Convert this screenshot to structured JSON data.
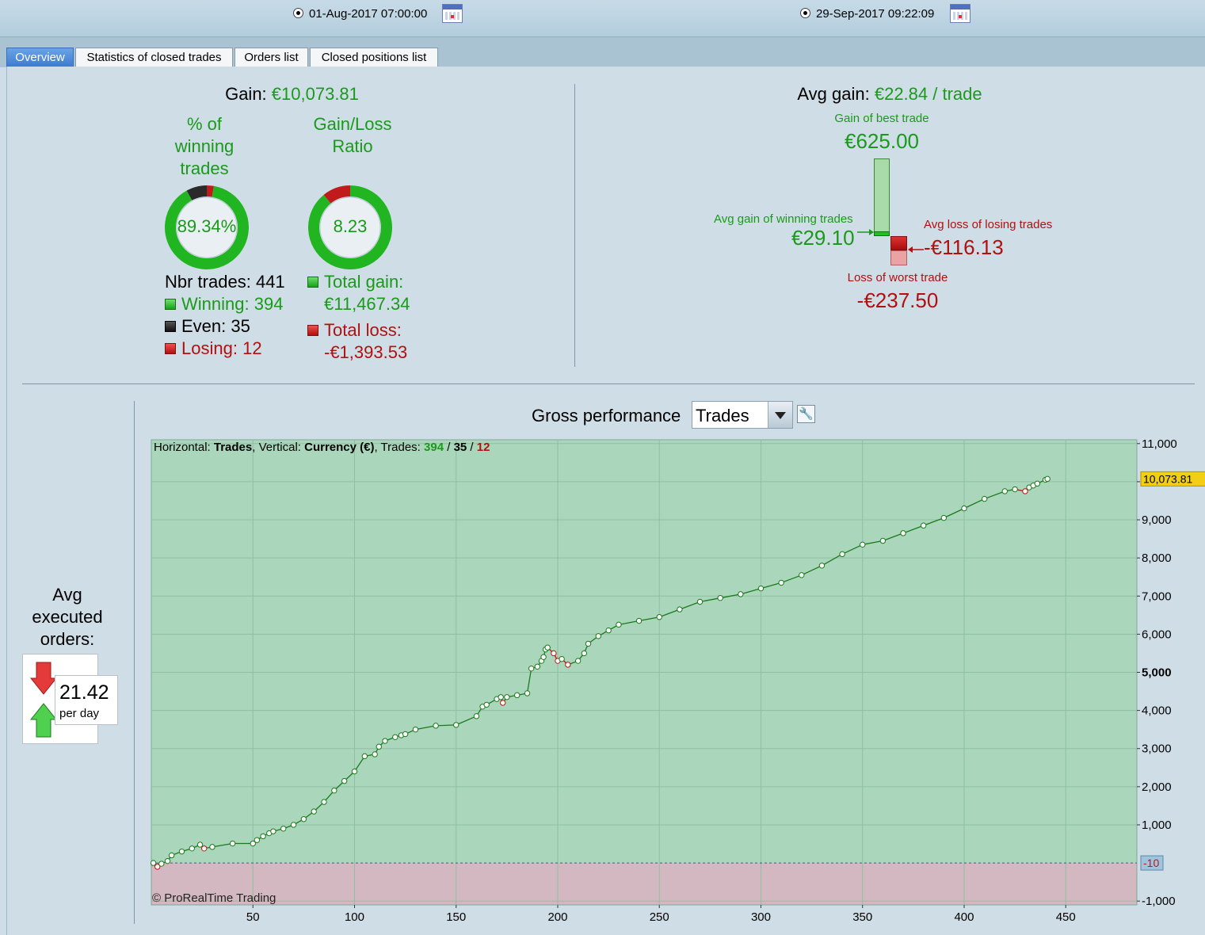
{
  "header": {
    "start_date": "01-Aug-2017 07:00:00",
    "end_date": "29-Sep-2017 09:22:09",
    "calendar_icon": "calendar-icon"
  },
  "tabs": [
    {
      "label": "Overview",
      "active": true
    },
    {
      "label": "Statistics of closed trades",
      "active": false
    },
    {
      "label": "Orders list",
      "active": false
    },
    {
      "label": "Closed positions list",
      "active": false
    }
  ],
  "overview": {
    "gain_label": "Gain:",
    "gain_value": "€10,073.81",
    "pct_winning_title": [
      "% of",
      "winning",
      "trades"
    ],
    "pct_winning_value": "89.34%",
    "pct_winning_fraction": 0.8934,
    "pct_even_fraction": 0.0794,
    "pct_losing_fraction": 0.0272,
    "gl_ratio_title": [
      "Gain/Loss",
      "Ratio"
    ],
    "gl_ratio_value": "8.23",
    "gl_ratio_loss_fraction": 0.1084,
    "nbr_trades_label": "Nbr trades:",
    "nbr_trades_value": "441",
    "winning_label": "Winning:",
    "winning_value": "394",
    "even_label": "Even:",
    "even_value": "35",
    "losing_label": "Losing:",
    "losing_value": "12",
    "total_gain_label": "Total gain:",
    "total_gain_value": "€11,467.34",
    "total_loss_label": "Total loss:",
    "total_loss_value": "-€1,393.53",
    "avg_gain_label": "Avg gain:",
    "avg_gain_value": "€22.84 / trade",
    "best_trade_label": "Gain of best trade",
    "best_trade_value": "€625.00",
    "avg_win_label": "Avg gain of winning trades",
    "avg_win_value": "€29.10",
    "avg_loss_label": "Avg loss of losing trades",
    "avg_loss_value": "-€116.13",
    "worst_trade_label": "Loss of worst trade",
    "worst_trade_value": "-€237.50"
  },
  "orders": {
    "title": [
      "Avg",
      "executed",
      "orders:"
    ],
    "value": "21.42",
    "unit": "per day"
  },
  "performance": {
    "title": "Gross performance",
    "dropdown_value": "Trades",
    "info_horizontal_label": "Horizontal:",
    "info_horizontal_value": "Trades",
    "info_vertical_label": ", Vertical:",
    "info_vertical_value": "Currency (€)",
    "info_trades_label": ", Trades:",
    "info_win": "394",
    "info_sep1": " / ",
    "info_even": "35",
    "info_sep2": " / ",
    "info_loss": "12",
    "copyright": "© ProRealTime Trading",
    "last_value_label": "10,073.81",
    "zero_marker_label": "-10"
  },
  "chart_data": {
    "type": "line",
    "title": "Gross performance",
    "xlabel": "Trades",
    "ylabel": "Currency (€)",
    "xlim": [
      0,
      485
    ],
    "ylim": [
      -1100,
      11100
    ],
    "x_ticks": [
      50,
      100,
      150,
      200,
      250,
      300,
      350,
      400,
      450
    ],
    "y_ticks": [
      -1000,
      1000,
      2000,
      3000,
      4000,
      5000,
      6000,
      7000,
      8000,
      9000,
      10000,
      11000
    ],
    "y_tick_labels": [
      "-1,000",
      "1,000",
      "2,000",
      "3,000",
      "4,000",
      "5,000",
      "6,000",
      "7,000",
      "8,000",
      "9,000",
      "",
      "11,000"
    ],
    "bold_y_tick": 5000,
    "grid": true,
    "colors": {
      "positive_fill": "#aad7bb",
      "negative_fill": "#d3b8c2",
      "line": "#1a7a1a",
      "loss_segment": "#c01010",
      "marker_fill": "#ffffff"
    },
    "series": [
      {
        "x": [
          1,
          3,
          5,
          8,
          10,
          15,
          20,
          24,
          26,
          30,
          40,
          50,
          52,
          55,
          58,
          60,
          65,
          70,
          75,
          80,
          85,
          90,
          95,
          100,
          105,
          110,
          112,
          115,
          120,
          123,
          125,
          130,
          140,
          150,
          160,
          163,
          165,
          170,
          172,
          173,
          175,
          180,
          185,
          187,
          190,
          192,
          193,
          194,
          195,
          198,
          200,
          202,
          205,
          210,
          213,
          215,
          220,
          225,
          230,
          240,
          250,
          260,
          270,
          280,
          290,
          300,
          310,
          320,
          330,
          340,
          350,
          360,
          370,
          380,
          390,
          400,
          410,
          420,
          425,
          430,
          432,
          434,
          436,
          440,
          441
        ],
        "y": [
          0,
          -100,
          -20,
          50,
          200,
          300,
          380,
          480,
          380,
          420,
          510,
          510,
          600,
          700,
          780,
          830,
          900,
          1000,
          1150,
          1350,
          1600,
          1900,
          2150,
          2400,
          2800,
          2850,
          3050,
          3200,
          3300,
          3350,
          3380,
          3500,
          3600,
          3620,
          3850,
          4100,
          4150,
          4300,
          4350,
          4200,
          4350,
          4400,
          4450,
          5100,
          5150,
          5300,
          5400,
          5600,
          5650,
          5500,
          5300,
          5350,
          5200,
          5300,
          5500,
          5750,
          5950,
          6100,
          6250,
          6350,
          6450,
          6650,
          6850,
          6950,
          7050,
          7200,
          7350,
          7550,
          7800,
          8100,
          8350,
          8450,
          8650,
          8850,
          9050,
          9300,
          9550,
          9750,
          9800,
          9750,
          9850,
          9900,
          9950,
          10050,
          10073.81
        ]
      }
    ]
  }
}
